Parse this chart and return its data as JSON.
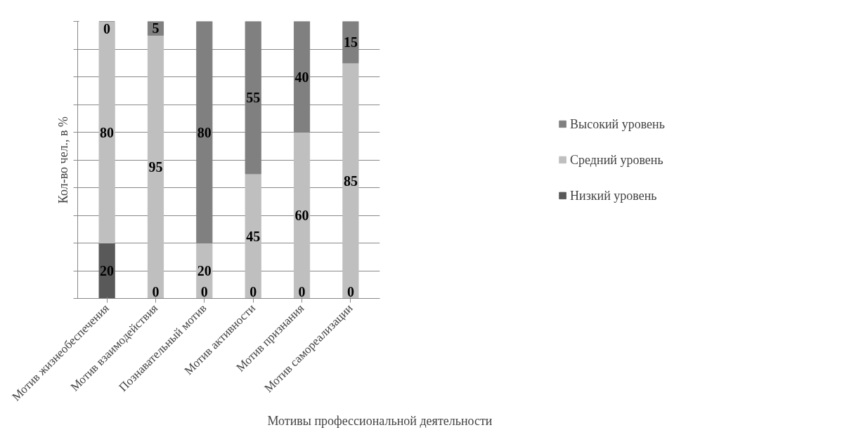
{
  "chart_data": {
    "type": "bar",
    "stacked": true,
    "xlabel": "Мотивы профессиональной деятельности",
    "ylabel": "Кол-во чел., в %",
    "categories": [
      "Мотив жизнеобеспечения",
      "Мотив взаимодействия",
      "Познавательный мотив",
      "Мотив активности",
      "Мотив признания",
      "Мотив самореализации"
    ],
    "series": [
      {
        "name": "Низкий уровень",
        "color": "#595959",
        "values": [
          20,
          0,
          0,
          0,
          0,
          0
        ]
      },
      {
        "name": "Средний уровень",
        "color": "#bfbfbf",
        "values": [
          80,
          95,
          20,
          45,
          60,
          85
        ]
      },
      {
        "name": "Высокий уровень",
        "color": "#808080",
        "values": [
          0,
          5,
          80,
          55,
          40,
          15
        ]
      }
    ],
    "ylim": [
      0,
      100
    ],
    "yticks": [
      {
        "value": 0,
        "label": null
      },
      {
        "value": 10,
        "label": null
      },
      {
        "value": 20,
        "label": null
      },
      {
        "value": 30,
        "label": null
      },
      {
        "value": 40,
        "label": null
      },
      {
        "value": 50,
        "label": null
      },
      {
        "value": 60,
        "label": null
      },
      {
        "value": 70,
        "label": null
      },
      {
        "value": 80,
        "label": null
      },
      {
        "value": 90,
        "label": null
      },
      {
        "value": 100,
        "label": null
      }
    ],
    "tick_labels": "x",
    "grid": "y",
    "legend": "right",
    "data_labels": true
  }
}
